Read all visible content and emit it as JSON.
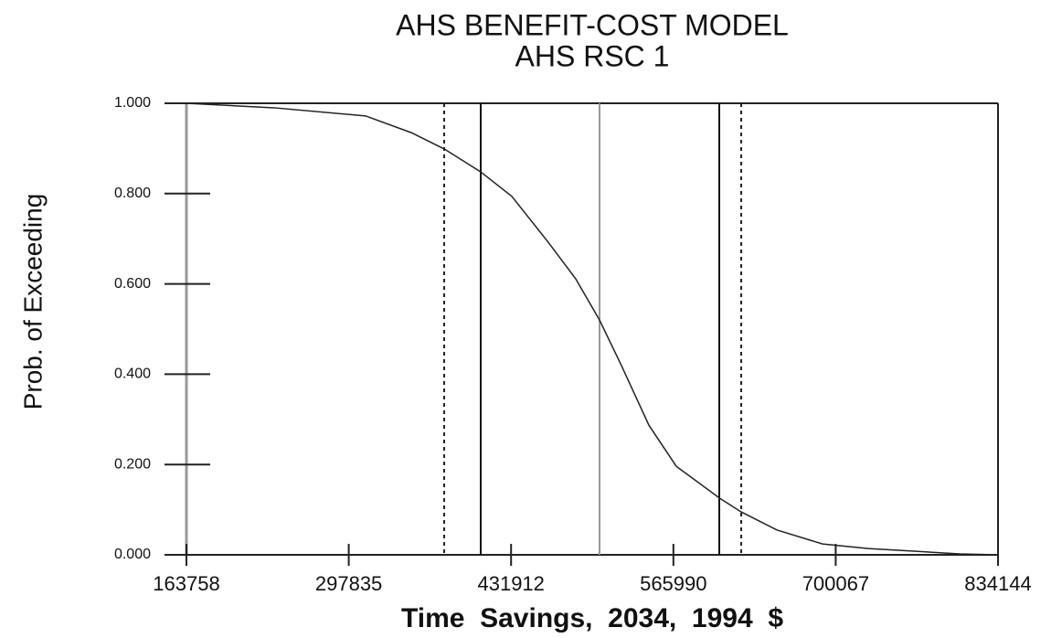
{
  "chart_data": {
    "type": "line",
    "title": "AHS BENEFIT-COST MODEL",
    "subtitle": "AHS RSC 1",
    "xlabel": "Time  Savings,  2034,  1994  $",
    "ylabel": "Prob. of Exceeding",
    "series": [
      {
        "color": "#222222",
        "x": [
          163758,
          236234,
          311717,
          349460,
          376645,
          406842,
          432504,
          462700,
          485346,
          504985,
          523111,
          545765,
          568413,
          603882,
          622001,
          651458,
          689205,
          726954,
          764698,
          802446,
          834144
        ],
        "values": [
          1.0,
          0.99,
          0.972,
          0.935,
          0.899,
          0.848,
          0.794,
          0.692,
          0.611,
          0.52,
          0.419,
          0.287,
          0.196,
          0.126,
          0.095,
          0.055,
          0.024,
          0.014,
          0.008,
          0.002,
          0.0
        ]
      }
    ],
    "vlines": [
      {
        "value": 376645,
        "color": "#222222",
        "style": "dotted"
      },
      {
        "value": 406842,
        "color": "#111111",
        "style": "solid"
      },
      {
        "value": 504985,
        "color": "#999999",
        "style": "solid"
      },
      {
        "value": 603882,
        "color": "#111111",
        "style": "solid"
      },
      {
        "value": 622001,
        "color": "#222222",
        "style": "dotted"
      }
    ],
    "xlim": [
      163758,
      834144
    ],
    "xticks": [
      163758,
      297835,
      431912,
      565990,
      700067,
      834144
    ],
    "ylim": [
      0,
      1
    ],
    "yticks": [
      {
        "value": 0,
        "label": "0.000"
      },
      {
        "value": 0.2,
        "label": "0.200"
      },
      {
        "value": 0.4,
        "label": "0.400"
      },
      {
        "value": 0.6,
        "label": "0.600"
      },
      {
        "value": 0.8,
        "label": "0.800"
      },
      {
        "value": 1,
        "label": "1.000"
      }
    ]
  }
}
